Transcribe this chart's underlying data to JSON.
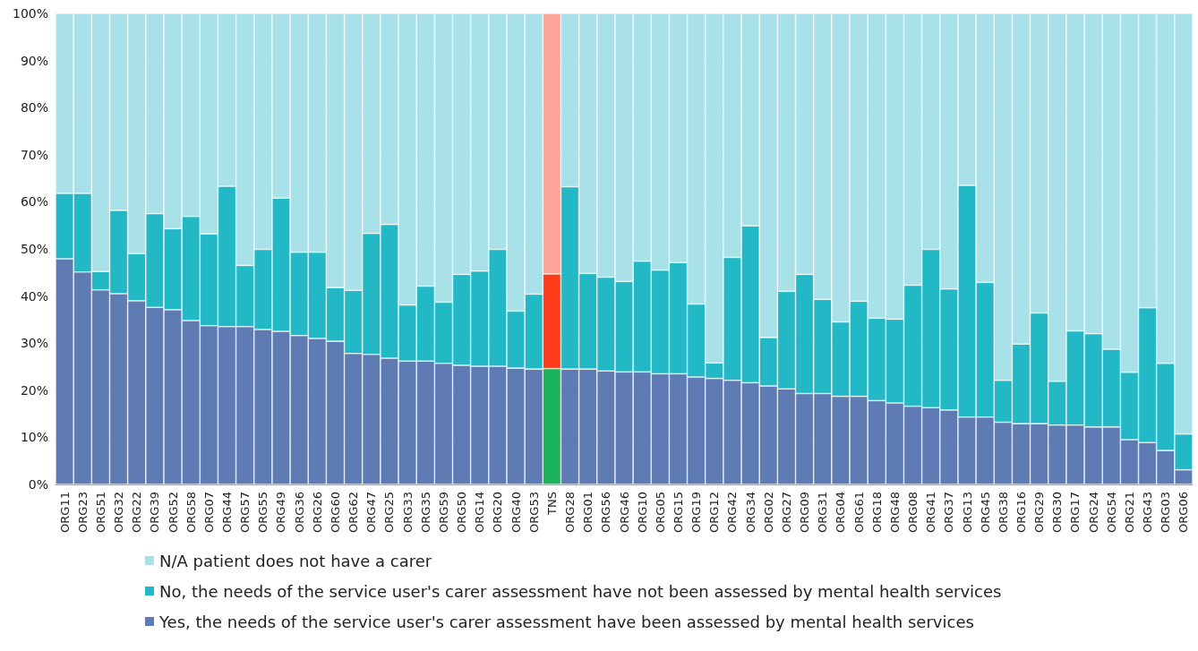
{
  "chart_data": {
    "type": "bar",
    "stacked": true,
    "legend": "bottom",
    "grid": "y",
    "categories": [
      "ORG11",
      "ORG23",
      "ORG51",
      "ORG32",
      "ORG22",
      "ORG39",
      "ORG52",
      "ORG58",
      "ORG07",
      "ORG44",
      "ORG57",
      "ORG55",
      "ORG49",
      "ORG36",
      "ORG26",
      "ORG60",
      "ORG62",
      "ORG47",
      "ORG25",
      "ORG33",
      "ORG35",
      "ORG59",
      "ORG50",
      "ORG14",
      "ORG20",
      "ORG40",
      "ORG53",
      "TNS",
      "ORG28",
      "ORG01",
      "ORG56",
      "ORG46",
      "ORG10",
      "ORG05",
      "ORG15",
      "ORG19",
      "ORG12",
      "ORG42",
      "ORG34",
      "ORG02",
      "ORG27",
      "ORG09",
      "ORG31",
      "ORG04",
      "ORG61",
      "ORG18",
      "ORG48",
      "ORG08",
      "ORG41",
      "ORG37",
      "ORG13",
      "ORG45",
      "ORG38",
      "ORG16",
      "ORG29",
      "ORG30",
      "ORG17",
      "ORG24",
      "ORG54",
      "ORG21",
      "ORG43",
      "ORG03",
      "ORG06"
    ],
    "ylim": [
      0,
      100
    ],
    "yticks": [
      {
        "value": 0,
        "label": "0%"
      },
      {
        "value": 10,
        "label": "10%"
      },
      {
        "value": 20,
        "label": "20%"
      },
      {
        "value": 30,
        "label": "30%"
      },
      {
        "value": 40,
        "label": "40%"
      },
      {
        "value": 50,
        "label": "50%"
      },
      {
        "value": 60,
        "label": "60%"
      },
      {
        "value": 70,
        "label": "70%"
      },
      {
        "value": 80,
        "label": "80%"
      },
      {
        "value": 90,
        "label": "90%"
      },
      {
        "value": 100,
        "label": "100%"
      }
    ],
    "series": [
      {
        "name": "Yes, the needs of the service user's carer assessment have been assessed by mental health services",
        "color": "#5f7bb3",
        "colors": [
          "#5f7bb3",
          "#5f7bb3",
          "#5f7bb3",
          "#5f7bb3",
          "#5f7bb3",
          "#5f7bb3",
          "#5f7bb3",
          "#5f7bb3",
          "#5f7bb3",
          "#5f7bb3",
          "#5f7bb3",
          "#5f7bb3",
          "#5f7bb3",
          "#5f7bb3",
          "#5f7bb3",
          "#5f7bb3",
          "#5f7bb3",
          "#5f7bb3",
          "#5f7bb3",
          "#5f7bb3",
          "#5f7bb3",
          "#5f7bb3",
          "#5f7bb3",
          "#5f7bb3",
          "#5f7bb3",
          "#5f7bb3",
          "#5f7bb3",
          "#1db35a",
          "#5f7bb3",
          "#5f7bb3",
          "#5f7bb3",
          "#5f7bb3",
          "#5f7bb3",
          "#5f7bb3",
          "#5f7bb3",
          "#5f7bb3",
          "#5f7bb3",
          "#5f7bb3",
          "#5f7bb3",
          "#5f7bb3",
          "#5f7bb3",
          "#5f7bb3",
          "#5f7bb3",
          "#5f7bb3",
          "#5f7bb3",
          "#5f7bb3",
          "#5f7bb3",
          "#5f7bb3",
          "#5f7bb3",
          "#5f7bb3",
          "#5f7bb3",
          "#5f7bb3",
          "#5f7bb3",
          "#5f7bb3",
          "#5f7bb3",
          "#5f7bb3",
          "#5f7bb3",
          "#5f7bb3",
          "#5f7bb3",
          "#5f7bb3",
          "#5f7bb3",
          "#5f7bb3",
          "#5f7bb3"
        ],
        "values": [
          47.9,
          45.1,
          41.3,
          40.5,
          39.0,
          37.6,
          37.1,
          34.8,
          33.7,
          33.5,
          33.5,
          32.9,
          32.5,
          31.6,
          31.0,
          30.4,
          27.8,
          27.6,
          26.8,
          26.2,
          26.2,
          25.7,
          25.3,
          25.1,
          25.1,
          24.7,
          24.5,
          24.6,
          24.5,
          24.5,
          24.1,
          23.9,
          23.9,
          23.5,
          23.5,
          22.8,
          22.5,
          22.1,
          21.6,
          20.9,
          20.3,
          19.3,
          19.3,
          18.7,
          18.7,
          17.8,
          17.3,
          16.6,
          16.3,
          15.8,
          14.3,
          14.3,
          13.2,
          12.9,
          12.9,
          12.6,
          12.6,
          12.2,
          12.2,
          9.5,
          8.9,
          7.2,
          3.1
        ]
      },
      {
        "name": "No, the needs of the service user's carer assessment have not been assessed by mental health services",
        "color": "#22b8c6",
        "colors": [
          "#22b8c6",
          "#22b8c6",
          "#22b8c6",
          "#22b8c6",
          "#22b8c6",
          "#22b8c6",
          "#22b8c6",
          "#22b8c6",
          "#22b8c6",
          "#22b8c6",
          "#22b8c6",
          "#22b8c6",
          "#22b8c6",
          "#22b8c6",
          "#22b8c6",
          "#22b8c6",
          "#22b8c6",
          "#22b8c6",
          "#22b8c6",
          "#22b8c6",
          "#22b8c6",
          "#22b8c6",
          "#22b8c6",
          "#22b8c6",
          "#22b8c6",
          "#22b8c6",
          "#22b8c6",
          "#ff3b1a",
          "#22b8c6",
          "#22b8c6",
          "#22b8c6",
          "#22b8c6",
          "#22b8c6",
          "#22b8c6",
          "#22b8c6",
          "#22b8c6",
          "#22b8c6",
          "#22b8c6",
          "#22b8c6",
          "#22b8c6",
          "#22b8c6",
          "#22b8c6",
          "#22b8c6",
          "#22b8c6",
          "#22b8c6",
          "#22b8c6",
          "#22b8c6",
          "#22b8c6",
          "#22b8c6",
          "#22b8c6",
          "#22b8c6",
          "#22b8c6",
          "#22b8c6",
          "#22b8c6",
          "#22b8c6",
          "#22b8c6",
          "#22b8c6",
          "#22b8c6",
          "#22b8c6",
          "#22b8c6",
          "#22b8c6",
          "#22b8c6",
          "#22b8c6"
        ],
        "values": [
          13.9,
          16.7,
          3.9,
          17.7,
          10.0,
          19.9,
          17.2,
          22.1,
          19.5,
          29.8,
          13.0,
          17.0,
          28.3,
          17.7,
          18.3,
          11.4,
          13.4,
          25.7,
          28.4,
          11.9,
          15.9,
          13.0,
          19.3,
          20.2,
          24.8,
          12.1,
          15.9,
          20.1,
          38.7,
          20.3,
          19.9,
          19.2,
          23.5,
          22.0,
          23.6,
          15.5,
          3.3,
          26.1,
          33.3,
          10.3,
          20.7,
          25.3,
          20.0,
          15.8,
          20.2,
          17.5,
          17.8,
          25.7,
          33.6,
          25.7,
          49.2,
          28.6,
          8.9,
          16.9,
          23.5,
          9.3,
          20.0,
          19.8,
          16.5,
          14.3,
          28.6,
          18.5,
          7.6
        ]
      },
      {
        "name": "N/A patient does not have a carer",
        "color": "#a8e1e7",
        "colors": [
          "#a8e1e7",
          "#a8e1e7",
          "#a8e1e7",
          "#a8e1e7",
          "#a8e1e7",
          "#a8e1e7",
          "#a8e1e7",
          "#a8e1e7",
          "#a8e1e7",
          "#a8e1e7",
          "#a8e1e7",
          "#a8e1e7",
          "#a8e1e7",
          "#a8e1e7",
          "#a8e1e7",
          "#a8e1e7",
          "#a8e1e7",
          "#a8e1e7",
          "#a8e1e7",
          "#a8e1e7",
          "#a8e1e7",
          "#a8e1e7",
          "#a8e1e7",
          "#a8e1e7",
          "#a8e1e7",
          "#a8e1e7",
          "#a8e1e7",
          "#ffa49a",
          "#a8e1e7",
          "#a8e1e7",
          "#a8e1e7",
          "#a8e1e7",
          "#a8e1e7",
          "#a8e1e7",
          "#a8e1e7",
          "#a8e1e7",
          "#a8e1e7",
          "#a8e1e7",
          "#a8e1e7",
          "#a8e1e7",
          "#a8e1e7",
          "#a8e1e7",
          "#a8e1e7",
          "#a8e1e7",
          "#a8e1e7",
          "#a8e1e7",
          "#a8e1e7",
          "#a8e1e7",
          "#a8e1e7",
          "#a8e1e7",
          "#a8e1e7",
          "#a8e1e7",
          "#a8e1e7",
          "#a8e1e7",
          "#a8e1e7",
          "#a8e1e7",
          "#a8e1e7",
          "#a8e1e7",
          "#a8e1e7",
          "#a8e1e7",
          "#a8e1e7",
          "#a8e1e7",
          "#a8e1e7"
        ],
        "values": [
          38.2,
          38.2,
          54.8,
          41.8,
          51.0,
          42.5,
          45.7,
          43.1,
          46.8,
          36.7,
          53.5,
          50.1,
          39.2,
          50.7,
          50.7,
          58.2,
          58.8,
          46.7,
          44.8,
          61.9,
          57.9,
          61.3,
          55.4,
          54.7,
          50.1,
          63.2,
          59.6,
          55.3,
          36.8,
          55.2,
          56.0,
          56.9,
          52.6,
          54.5,
          52.9,
          61.7,
          74.2,
          51.8,
          45.1,
          68.8,
          59.0,
          55.4,
          60.7,
          65.5,
          61.1,
          64.7,
          64.9,
          57.7,
          50.1,
          58.5,
          36.5,
          57.1,
          77.9,
          70.2,
          63.6,
          78.1,
          67.4,
          68.0,
          71.3,
          76.2,
          62.5,
          74.3,
          89.3
        ]
      }
    ]
  }
}
